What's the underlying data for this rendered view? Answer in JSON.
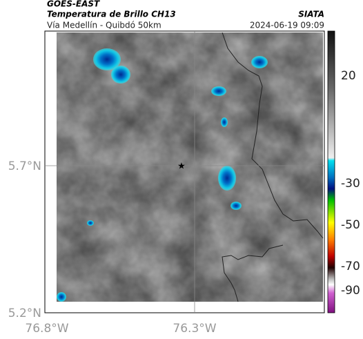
{
  "header": {
    "source": "GOES-EAST",
    "title": "Temperatura de Brillo CH13",
    "subtitle": "Vía Medellín - Quibdó 50km",
    "org": "SIATA",
    "datetime": "2024-06-19 09:09"
  },
  "axes": {
    "lat_labels": [
      "5.7°N",
      "5.2°N"
    ],
    "lon_labels": [
      "76.8°W",
      "76.3°W"
    ]
  },
  "colorbar": {
    "ticks": [
      20,
      -30,
      -50,
      -70,
      -90
    ]
  }
}
